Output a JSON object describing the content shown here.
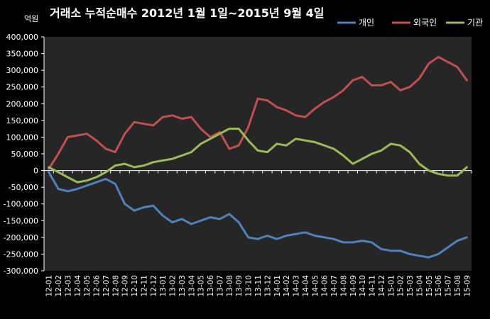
{
  "chart_data": {
    "type": "line",
    "title": "거래소 누적순매수 2012년 1월 1일~2015년 9월 4일",
    "ylabel": "억원",
    "ylim": [
      -300000,
      400000
    ],
    "yticks": [
      -300000,
      -250000,
      -200000,
      -150000,
      -100000,
      -50000,
      0,
      50000,
      100000,
      150000,
      200000,
      250000,
      300000,
      350000,
      400000
    ],
    "ytick_labels": [
      "-300,000",
      "-250,000",
      "-200,000",
      "-150,000",
      "-100,000",
      "-50,000",
      "0",
      "50,000",
      "100,000",
      "150,000",
      "200,000",
      "250,000",
      "300,000",
      "350,000",
      "400,000"
    ],
    "categories": [
      "12-01",
      "12-02",
      "12-03",
      "12-04",
      "12-05",
      "12-06",
      "12-07",
      "12-08",
      "12-09",
      "12-10",
      "12-11",
      "12-12",
      "13-01",
      "13-02",
      "13-03",
      "13-04",
      "13-05",
      "13-06",
      "13-07",
      "13-08",
      "13-09",
      "13-10",
      "13-11",
      "13-12",
      "14-01",
      "14-02",
      "14-03",
      "14-04",
      "14-05",
      "14-06",
      "14-07",
      "14-08",
      "14-09",
      "14-10",
      "14-11",
      "14-12",
      "15-01",
      "15-02",
      "15-03",
      "15-04",
      "15-05",
      "15-06",
      "15-07",
      "15-08",
      "15-09"
    ],
    "grid": false,
    "legend_position": "top-right",
    "series": [
      {
        "name": "개인",
        "color": "#4f81bd",
        "values": [
          -5000,
          -55000,
          -62000,
          -55000,
          -45000,
          -35000,
          -25000,
          -40000,
          -100000,
          -120000,
          -110000,
          -105000,
          -135000,
          -155000,
          -145000,
          -160000,
          -150000,
          -140000,
          -145000,
          -130000,
          -155000,
          -200000,
          -205000,
          -195000,
          -205000,
          -195000,
          -190000,
          -185000,
          -195000,
          -200000,
          -205000,
          -215000,
          -215000,
          -210000,
          -215000,
          -235000,
          -240000,
          -240000,
          -250000,
          -255000,
          -260000,
          -250000,
          -230000,
          -210000,
          -200000
        ]
      },
      {
        "name": "외국인",
        "color": "#c0504d",
        "values": [
          5000,
          50000,
          100000,
          105000,
          110000,
          90000,
          65000,
          55000,
          110000,
          145000,
          140000,
          135000,
          160000,
          165000,
          155000,
          160000,
          125000,
          100000,
          115000,
          65000,
          75000,
          130000,
          215000,
          210000,
          190000,
          180000,
          165000,
          160000,
          185000,
          205000,
          220000,
          240000,
          270000,
          280000,
          255000,
          255000,
          265000,
          240000,
          250000,
          275000,
          320000,
          340000,
          325000,
          310000,
          270000
        ]
      },
      {
        "name": "기관",
        "color": "#9bbb59",
        "values": [
          10000,
          -5000,
          -20000,
          -35000,
          -30000,
          -20000,
          -5000,
          15000,
          20000,
          10000,
          15000,
          25000,
          30000,
          35000,
          45000,
          55000,
          80000,
          95000,
          110000,
          125000,
          125000,
          90000,
          60000,
          55000,
          80000,
          75000,
          95000,
          90000,
          85000,
          75000,
          65000,
          45000,
          20000,
          35000,
          50000,
          60000,
          80000,
          75000,
          55000,
          20000,
          0,
          -10000,
          -15000,
          -15000,
          10000
        ]
      }
    ]
  }
}
